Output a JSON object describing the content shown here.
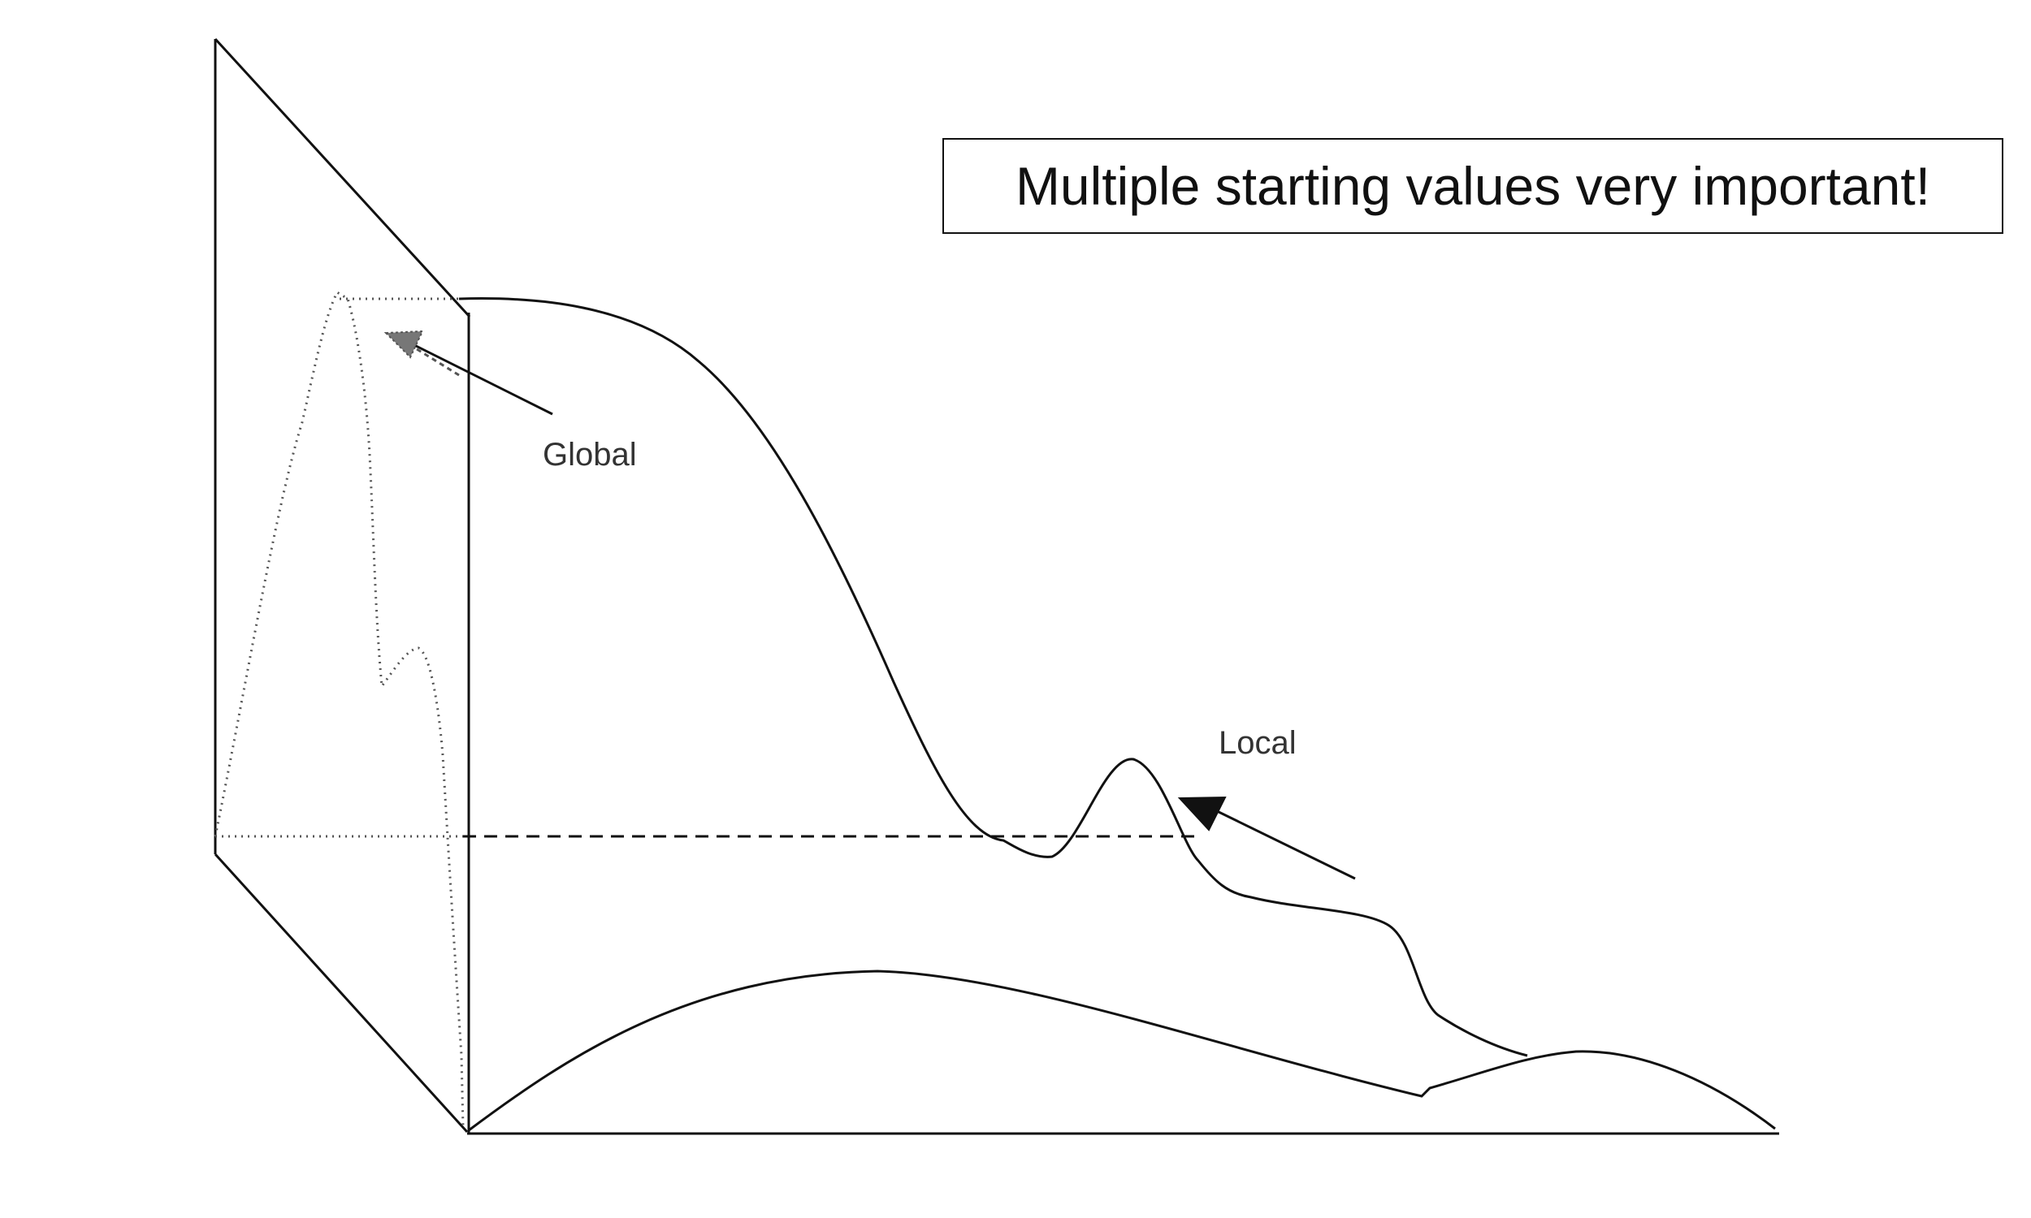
{
  "callout": {
    "text": "Multiple starting values very important!"
  },
  "labels": {
    "global": "Global",
    "local": "Local"
  },
  "colors": {
    "line": "#111111",
    "dotted": "#555555",
    "label": "#333333"
  }
}
